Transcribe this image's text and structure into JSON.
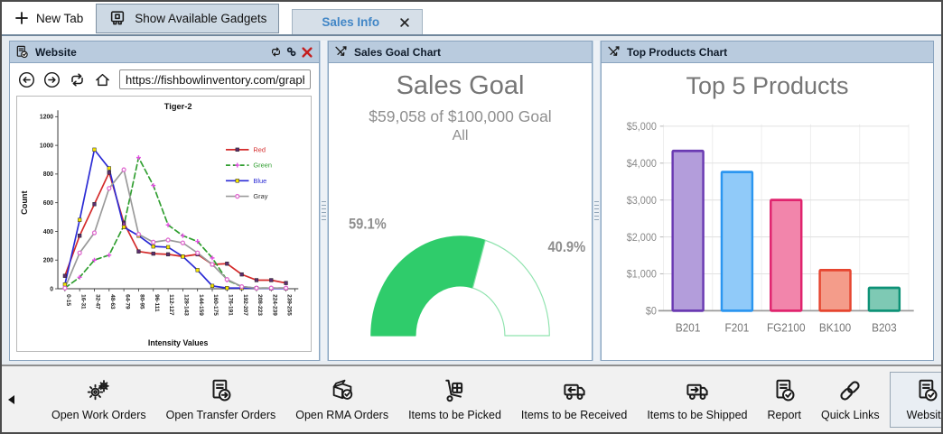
{
  "tab_bar": {
    "new_tab_label": "New Tab",
    "gadgets_button_label": "Show Available Gadgets",
    "active_tab_label": "Sales Info"
  },
  "website_panel": {
    "title": "Website",
    "url": "https://fishbowlinventory.com/graph"
  },
  "sales_goal_panel": {
    "title": "Sales Goal Chart"
  },
  "top_products_panel": {
    "title": "Top Products Chart"
  },
  "toolbar": {
    "items": [
      {
        "label": "Open Work Orders",
        "icon": "gears",
        "selected": false
      },
      {
        "label": "Open Transfer Orders",
        "icon": "doc-arrow",
        "selected": false
      },
      {
        "label": "Open RMA Orders",
        "icon": "box-check",
        "selected": false
      },
      {
        "label": "Items to be Picked",
        "icon": "handtruck",
        "selected": false
      },
      {
        "label": "Items to be Received",
        "icon": "truck-left",
        "selected": false
      },
      {
        "label": "Items to be Shipped",
        "icon": "truck-right",
        "selected": false
      },
      {
        "label": "Report",
        "icon": "doc-check",
        "selected": false
      },
      {
        "label": "Quick Links",
        "icon": "chain",
        "selected": false
      },
      {
        "label": "Website",
        "icon": "doc-check",
        "selected": true
      }
    ]
  },
  "chart_data": [
    {
      "type": "line",
      "title": "Tiger-2",
      "xlabel": "Intensity Values",
      "ylabel": "Count",
      "ylim": [
        0,
        1200
      ],
      "ytick_step": 200,
      "grid": false,
      "legend_position": "right-inside",
      "categories": [
        "0-15",
        "16-31",
        "32-47",
        "48-63",
        "64-79",
        "80-95",
        "96-111",
        "112-127",
        "128-143",
        "144-159",
        "160-175",
        "176-191",
        "192-207",
        "208-223",
        "224-239",
        "239-255"
      ],
      "series": [
        {
          "name": "Red",
          "color": "#d42a2a",
          "label_color": "#d42a2a",
          "marker": "square",
          "marker_color": "#5c2d6e",
          "dash": false,
          "values": [
            90,
            370,
            590,
            810,
            460,
            260,
            245,
            240,
            225,
            240,
            170,
            175,
            100,
            60,
            60,
            40
          ]
        },
        {
          "name": "Green",
          "color": "#2f9e2f",
          "label_color": "#2f9e2f",
          "marker": "plus",
          "marker_color": "#e24fe2",
          "dash": true,
          "values": [
            5,
            80,
            200,
            235,
            440,
            915,
            720,
            445,
            370,
            330,
            215,
            60,
            15,
            5,
            5,
            5
          ]
        },
        {
          "name": "Blue",
          "color": "#2a2ad4",
          "label_color": "#2a2ad4",
          "marker": "square",
          "marker_color": "#f5e400",
          "dash": false,
          "values": [
            30,
            480,
            970,
            840,
            430,
            370,
            295,
            290,
            225,
            130,
            20,
            5,
            5,
            5,
            2,
            2
          ]
        },
        {
          "name": "Gray",
          "color": "#9a9a9a",
          "label_color": "#333333",
          "marker": "circle",
          "marker_color": "#e06ad0",
          "dash": false,
          "values": [
            5,
            250,
            390,
            700,
            830,
            380,
            325,
            340,
            320,
            250,
            170,
            65,
            15,
            5,
            5,
            5
          ]
        }
      ]
    },
    {
      "type": "gauge",
      "title": "Sales Goal",
      "subtitle": "$59,058 of $100,000 Goal",
      "scope": "All",
      "value": 59058,
      "goal": 100000,
      "percent_complete": 59.1,
      "percent_remaining": 40.9,
      "labels": [
        "59.1%",
        "40.9%"
      ],
      "fill_color": "#2fcc6b",
      "remaining_stroke": "#8fe3ae",
      "label_color": "#8e8e8e"
    },
    {
      "type": "bar",
      "title": "Top 5 Products",
      "categories": [
        "B201",
        "F201",
        "FG2100",
        "BK100",
        "B203"
      ],
      "values": [
        4330,
        3760,
        3000,
        1100,
        620
      ],
      "ylim": [
        0,
        5000
      ],
      "ytick_labels": [
        "$0",
        "$1,000",
        "$2,000",
        "$3,000",
        "$4,000",
        "$5,000"
      ],
      "grid": true,
      "bar_colors": [
        {
          "fill": "#b39ddb",
          "stroke": "#6a3ab2"
        },
        {
          "fill": "#90caf9",
          "stroke": "#2b96f0"
        },
        {
          "fill": "#f285ab",
          "stroke": "#e0246e"
        },
        {
          "fill": "#f49c8a",
          "stroke": "#e6452f"
        },
        {
          "fill": "#7ec9b4",
          "stroke": "#0e9277"
        }
      ]
    }
  ]
}
